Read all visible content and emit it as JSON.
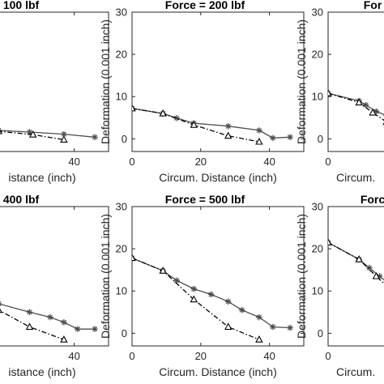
{
  "chart_data": [
    {
      "type": "line",
      "title": "= 100 lbf",
      "xlabel": "istance (inch)",
      "ylabel": "",
      "xlim": [
        0,
        50
      ],
      "ylim": [
        -3,
        30
      ],
      "xticks": [
        "40"
      ],
      "yticks": [],
      "series": [
        {
          "style": "solid-star",
          "x": [
            0,
            9,
            18,
            27,
            37,
            46
          ],
          "y": [
            2.8,
            2.4,
            2.0,
            1.6,
            1.1,
            0.4
          ]
        },
        {
          "style": "dashdot-triangle",
          "x": [
            0,
            9,
            18,
            28,
            37
          ],
          "y": [
            2.8,
            2.3,
            1.8,
            1.0,
            -0.2
          ]
        }
      ]
    },
    {
      "type": "line",
      "title": "Force = 200 lbf",
      "xlabel": "Circum. Distance (inch)",
      "ylabel": "Deformation (0.001 inch)",
      "xlim": [
        0,
        50
      ],
      "ylim": [
        -3,
        30
      ],
      "xticks": [
        "0",
        "20",
        "40"
      ],
      "yticks": [
        "0",
        "10",
        "20",
        "30"
      ],
      "series": [
        {
          "style": "solid-star",
          "x": [
            0,
            9,
            13,
            18,
            28,
            37,
            41,
            46
          ],
          "y": [
            7.2,
            6.0,
            4.9,
            3.7,
            3.0,
            2.0,
            0.2,
            0.4
          ]
        },
        {
          "style": "dashdot-triangle",
          "x": [
            0,
            9,
            18,
            28,
            37
          ],
          "y": [
            7.2,
            6.0,
            3.3,
            0.7,
            -0.7
          ]
        }
      ]
    },
    {
      "type": "line",
      "title": "For",
      "xlabel": "Circum.",
      "ylabel": "Deformation (0.001 inch)",
      "xlim": [
        0,
        50
      ],
      "ylim": [
        -3,
        30
      ],
      "xticks": [
        "0"
      ],
      "yticks": [
        "0",
        "10",
        "20",
        "30"
      ],
      "series": [
        {
          "style": "solid-star",
          "x": [
            0,
            9,
            11,
            14,
            17,
            22
          ],
          "y": [
            10.8,
            9.0,
            8.0,
            6.5,
            5.5,
            3.0
          ]
        },
        {
          "style": "dashdot-triangle",
          "x": [
            0,
            9,
            13,
            17,
            22
          ],
          "y": [
            10.8,
            8.6,
            6.2,
            4.0,
            1.5
          ]
        }
      ]
    },
    {
      "type": "line",
      "title": "= 400 lbf",
      "xlabel": "istance (inch)",
      "ylabel": "",
      "xlim": [
        0,
        50
      ],
      "ylim": [
        -3,
        30
      ],
      "xticks": [
        "40"
      ],
      "yticks": [],
      "series": [
        {
          "style": "solid-star",
          "x": [
            0,
            9,
            18,
            27,
            33,
            37,
            41,
            46
          ],
          "y": [
            14.5,
            9.5,
            7.0,
            5.0,
            3.8,
            2.6,
            1.0,
            1.0
          ]
        },
        {
          "style": "dashdot-triangle",
          "x": [
            0,
            9,
            18,
            27,
            37
          ],
          "y": [
            14.5,
            8.5,
            5.5,
            1.5,
            -1.5
          ]
        }
      ]
    },
    {
      "type": "line",
      "title": "Force = 500 lbf",
      "xlabel": "Circum. Distance (inch)",
      "ylabel": "Deformation (0.001 inch)",
      "xlim": [
        0,
        50
      ],
      "ylim": [
        -3,
        30
      ],
      "xticks": [
        "0",
        "20",
        "40"
      ],
      "yticks": [
        "0",
        "10",
        "20",
        "30"
      ],
      "series": [
        {
          "style": "solid-star",
          "x": [
            0,
            9,
            13,
            18,
            23,
            28,
            32,
            37,
            41,
            46
          ],
          "y": [
            17.8,
            14.8,
            12.5,
            10.5,
            9.2,
            7.5,
            5.5,
            3.8,
            1.5,
            1.3
          ]
        },
        {
          "style": "dashdot-triangle",
          "x": [
            0,
            9,
            18,
            28,
            37
          ],
          "y": [
            17.8,
            14.8,
            8.0,
            1.5,
            -1.5
          ]
        }
      ]
    },
    {
      "type": "line",
      "title": "Forc",
      "xlabel": "Circum.",
      "ylabel": "Deformation (0.001 inch)",
      "xlim": [
        0,
        50
      ],
      "ylim": [
        -3,
        30
      ],
      "xticks": [
        "0"
      ],
      "yticks": [
        "0",
        "10",
        "20",
        "30"
      ],
      "series": [
        {
          "style": "solid-star",
          "x": [
            0,
            9,
            12,
            15,
            18,
            22
          ],
          "y": [
            21.5,
            17.5,
            15.5,
            13.5,
            11.5,
            9.0
          ]
        },
        {
          "style": "dashdot-triangle",
          "x": [
            0,
            9,
            14,
            18,
            22
          ],
          "y": [
            21.5,
            17.5,
            13.5,
            10.5,
            7.0
          ]
        }
      ]
    }
  ]
}
